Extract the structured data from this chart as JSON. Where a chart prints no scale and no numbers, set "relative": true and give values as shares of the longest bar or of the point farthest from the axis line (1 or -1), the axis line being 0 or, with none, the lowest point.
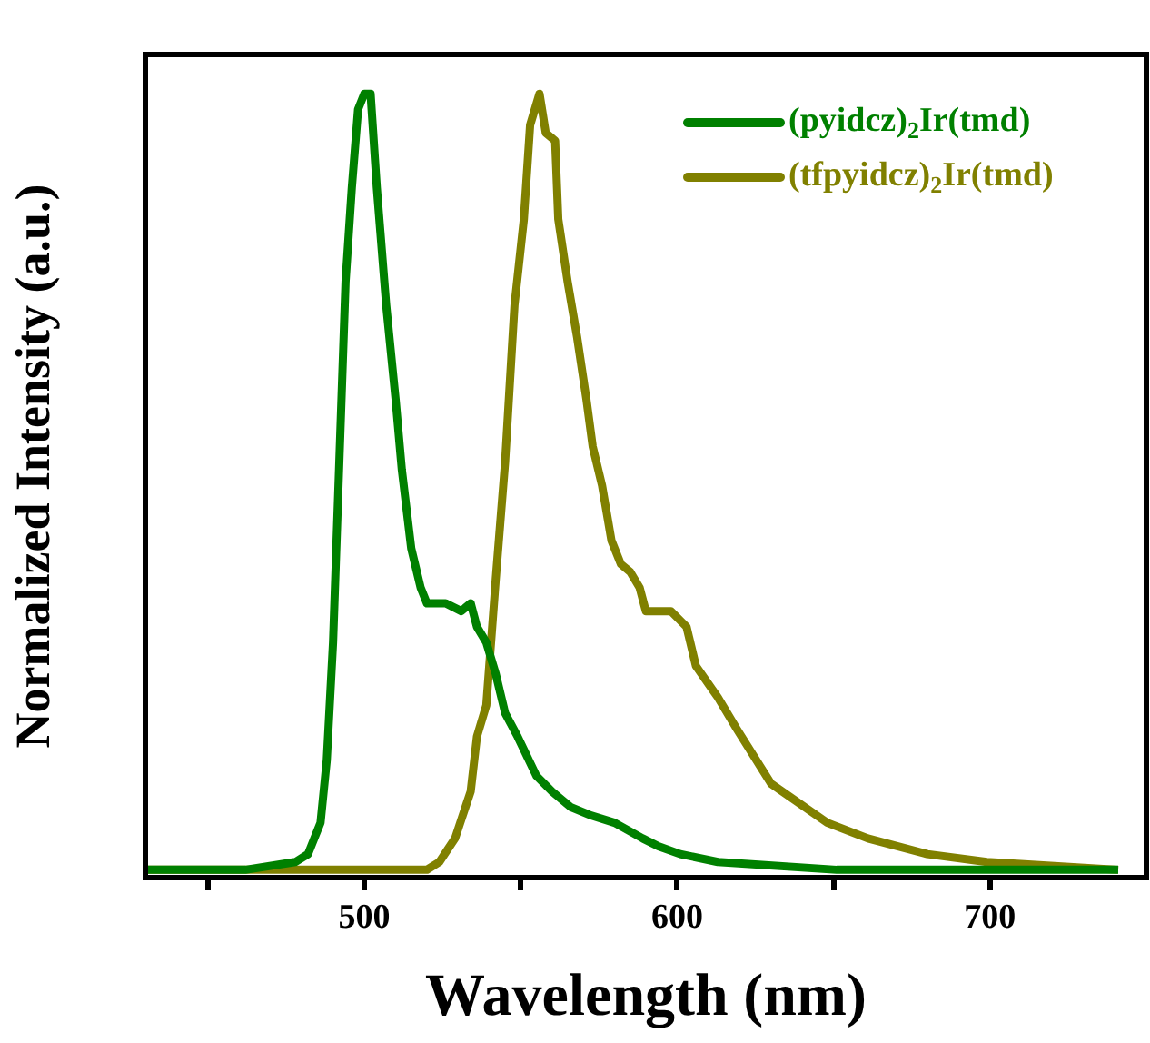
{
  "chart_data": {
    "type": "line",
    "relative": true,
    "xlabel": "Wavelength (nm)",
    "ylabel": "Normalized Intensity (a.u.)",
    "xlim": [
      430,
      750
    ],
    "xticks": [
      {
        "value": 450,
        "label": null
      },
      500,
      {
        "value": 550,
        "label": null
      },
      600,
      {
        "value": 650,
        "label": null
      },
      700
    ],
    "tick_labels": "x",
    "grid": false,
    "legend": "top right",
    "marker": "none",
    "line_style": "solid",
    "series": [
      {
        "name": "(pyidcz)$_{2}$Ir(tmd)",
        "color": "#008000",
        "x": [
          430,
          462,
          478,
          482,
          486,
          488,
          490,
          492,
          494,
          496,
          498,
          500,
          502,
          504,
          507,
          510,
          512,
          515,
          518,
          520,
          526,
          531,
          534,
          536,
          539,
          542,
          545,
          549,
          555,
          560,
          566,
          572,
          580,
          589,
          594,
          601,
          613,
          651,
          699,
          741
        ],
        "values": [
          0.01,
          0.01,
          0.02,
          0.03,
          0.07,
          0.15,
          0.3,
          0.53,
          0.76,
          0.88,
          0.98,
          1,
          1,
          0.88,
          0.73,
          0.61,
          0.52,
          0.42,
          0.37,
          0.35,
          0.35,
          0.34,
          0.35,
          0.32,
          0.3,
          0.26,
          0.21,
          0.18,
          0.13,
          0.11,
          0.09,
          0.08,
          0.07,
          0.05,
          0.04,
          0.03,
          0.02,
          0.01,
          0.01,
          0.01
        ]
      },
      {
        "name": "(tfpyidcz)$_{2}$Ir(tmd)",
        "color": "#808000",
        "x": [
          430,
          520,
          524,
          529,
          534,
          536,
          539,
          542,
          545,
          548,
          551,
          553,
          556,
          558,
          561,
          562,
          565,
          568,
          571,
          573,
          576,
          579,
          582,
          585,
          588,
          590,
          593,
          598,
          603,
          606,
          613,
          619,
          630,
          648,
          661,
          680,
          699,
          741
        ],
        "values": [
          0.01,
          0.01,
          0.02,
          0.05,
          0.11,
          0.18,
          0.22,
          0.38,
          0.53,
          0.73,
          0.84,
          0.96,
          1,
          0.95,
          0.94,
          0.84,
          0.76,
          0.69,
          0.61,
          0.55,
          0.5,
          0.43,
          0.4,
          0.39,
          0.37,
          0.34,
          0.34,
          0.34,
          0.32,
          0.27,
          0.23,
          0.19,
          0.12,
          0.07,
          0.05,
          0.03,
          0.02,
          0.01
        ]
      }
    ]
  }
}
